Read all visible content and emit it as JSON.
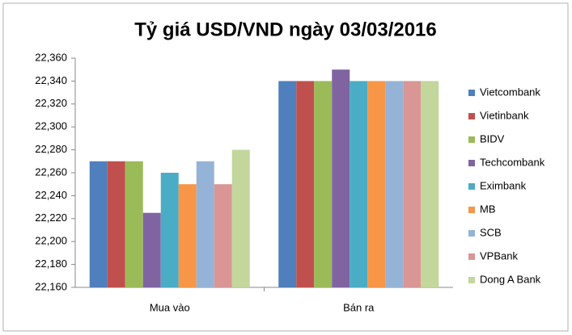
{
  "chart_data": {
    "type": "bar",
    "title": "Tỷ giá USD/VND ngày 03/03/2016",
    "categories": [
      "Mua vào",
      "Bán ra"
    ],
    "series": [
      {
        "name": "Vietcombank",
        "color": "#4f7fbc",
        "values": [
          22270,
          22340
        ]
      },
      {
        "name": "Vietinbank",
        "color": "#c0504d",
        "values": [
          22270,
          22340
        ]
      },
      {
        "name": "BIDV",
        "color": "#9bbb59",
        "values": [
          22270,
          22340
        ]
      },
      {
        "name": "Techcombank",
        "color": "#8064a2",
        "values": [
          22225,
          22350
        ]
      },
      {
        "name": "Eximbank",
        "color": "#4bacc6",
        "values": [
          22260,
          22340
        ]
      },
      {
        "name": "MB",
        "color": "#f79646",
        "values": [
          22250,
          22340
        ]
      },
      {
        "name": "SCB",
        "color": "#95b3d7",
        "values": [
          22270,
          22340
        ]
      },
      {
        "name": "VPBank",
        "color": "#d99694",
        "values": [
          22250,
          22340
        ]
      },
      {
        "name": "Dong A Bank",
        "color": "#c3d69b",
        "values": [
          22280,
          22340
        ]
      }
    ],
    "ylim": [
      22160,
      22360
    ],
    "yticks": [
      {
        "value": 22160,
        "label": "22,160"
      },
      {
        "value": 22180,
        "label": "22,180"
      },
      {
        "value": 22200,
        "label": "22,200"
      },
      {
        "value": 22220,
        "label": "22,220"
      },
      {
        "value": 22240,
        "label": "22,240"
      },
      {
        "value": 22260,
        "label": "22,260"
      },
      {
        "value": 22280,
        "label": "22,280"
      },
      {
        "value": 22300,
        "label": "22,300"
      },
      {
        "value": 22320,
        "label": "22,320"
      },
      {
        "value": 22340,
        "label": "22,340"
      },
      {
        "value": 22360,
        "label": "22,360"
      }
    ],
    "grid": false,
    "legend": "right"
  }
}
